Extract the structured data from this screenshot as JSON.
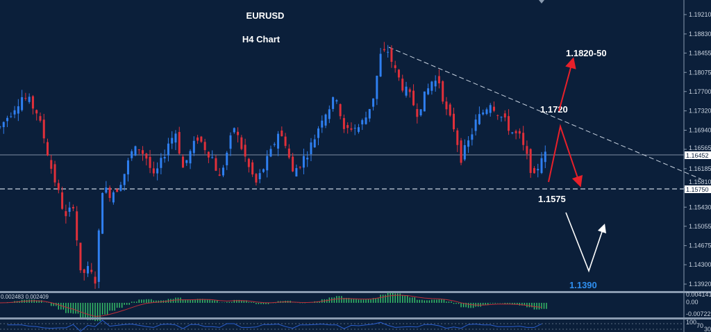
{
  "title": "EURUSD",
  "subtitle": "H4 Chart",
  "annotations": {
    "target_up": "1.1820-50",
    "trendline_level": "1.1720",
    "support": "1.1575",
    "target_down": "1.1390"
  },
  "colors": {
    "background": "#0b1f3a",
    "bull": "#2f7ff0",
    "bear": "#e0303a",
    "macd_hist": "#39c76a",
    "macd_signal": "#c0303a",
    "rsi": "#2a5fd0",
    "down_target": "#2f8ff0"
  },
  "price_axis": [
    "1.19210",
    "1.18830",
    "1.18455",
    "1.18075",
    "1.17700",
    "1.17320",
    "1.16940",
    "1.16565",
    "1.16185",
    "1.15810",
    "1.15430",
    "1.15055",
    "1.14675",
    "1.14300",
    "1.13920"
  ],
  "current_price": "1.16452",
  "support_price": "1.15750",
  "macd": {
    "values": "0.002483  0.002409",
    "axis": [
      "0.004141",
      "0.00",
      "-0.007223"
    ]
  },
  "rsi": {
    "axis": [
      "100",
      "70",
      "30"
    ]
  },
  "chart_data": {
    "type": "candlestick",
    "symbol": "EURUSD",
    "timeframe": "H4",
    "ylim": [
      1.1375,
      1.1945
    ],
    "closes": [
      1.17,
      1.172,
      1.174,
      1.176,
      1.175,
      1.173,
      1.168,
      1.162,
      1.157,
      1.152,
      1.155,
      1.141,
      1.142,
      1.14,
      1.158,
      1.157,
      1.158,
      1.161,
      1.165,
      1.166,
      1.164,
      1.16,
      1.163,
      1.167,
      1.169,
      1.162,
      1.165,
      1.168,
      1.166,
      1.164,
      1.16,
      1.165,
      1.17,
      1.166,
      1.162,
      1.159,
      1.162,
      1.165,
      1.169,
      1.167,
      1.161,
      1.163,
      1.165,
      1.168,
      1.172,
      1.174,
      1.176,
      1.169,
      1.17,
      1.17,
      1.172,
      1.176,
      1.184,
      1.185,
      1.181,
      1.178,
      1.176,
      1.173,
      1.176,
      1.179,
      1.179,
      1.173,
      1.17,
      1.164,
      1.167,
      1.171,
      1.173,
      1.175,
      1.173,
      1.171,
      1.169,
      1.168,
      1.164,
      1.16,
      1.1645
    ],
    "horizontal_lines": [
      1.16452,
      1.1575
    ],
    "trendline": [
      [
        1.185
      ],
      [
        1.16
      ]
    ]
  }
}
